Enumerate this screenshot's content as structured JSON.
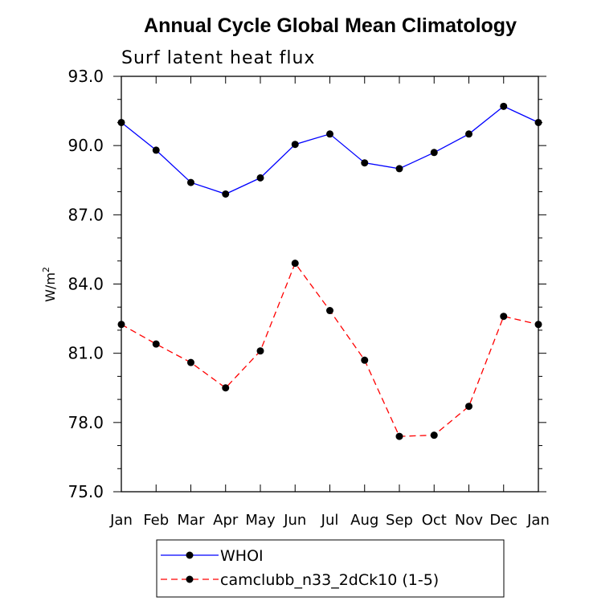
{
  "chart_data": {
    "type": "line",
    "title": "Annual Cycle Global Mean Climatology",
    "subtitle": "Surf latent heat flux",
    "ylabel": "W/m",
    "ylabel_sup": "2",
    "categories": [
      "Jan",
      "Feb",
      "Mar",
      "Apr",
      "May",
      "Jun",
      "Jul",
      "Aug",
      "Sep",
      "Oct",
      "Nov",
      "Dec",
      "Jan"
    ],
    "ylim": [
      75.0,
      93.0
    ],
    "yticks": [
      75.0,
      78.0,
      81.0,
      84.0,
      87.0,
      90.0,
      93.0
    ],
    "ytick_labels": [
      "75.0",
      "78.0",
      "81.0",
      "84.0",
      "87.0",
      "90.0",
      "93.0"
    ],
    "y_minor_step": 1.0,
    "grid": false,
    "legend_position": "bottom",
    "series": [
      {
        "name": "WHOI",
        "color": "#0000ff",
        "linestyle": "solid",
        "marker": "circle",
        "values": [
          91.0,
          89.8,
          88.4,
          87.9,
          88.6,
          90.05,
          90.5,
          89.25,
          89.0,
          89.7,
          90.5,
          91.7,
          91.0
        ]
      },
      {
        "name": "camclubb_n33_2dCk10 (1-5)",
        "color": "#ff0000",
        "linestyle": "dashed",
        "marker": "circle",
        "values": [
          82.25,
          81.4,
          80.6,
          79.5,
          81.1,
          84.9,
          82.85,
          80.7,
          77.4,
          77.45,
          78.7,
          82.6,
          82.25
        ]
      }
    ]
  }
}
